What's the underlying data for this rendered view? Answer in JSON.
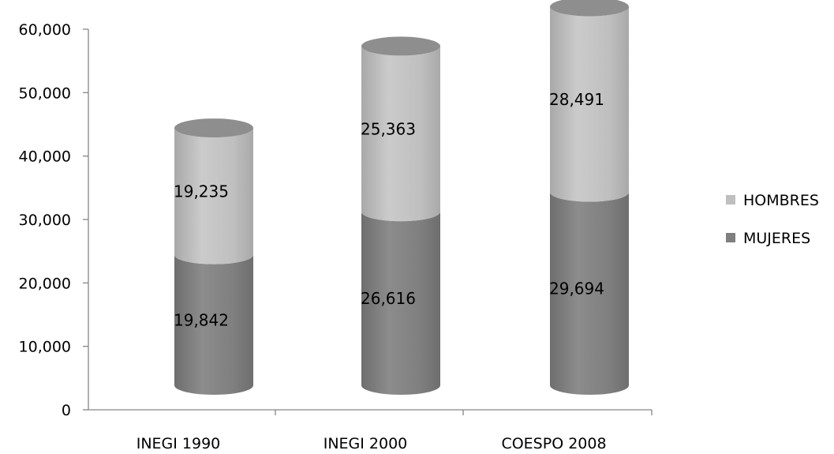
{
  "chart_data": {
    "type": "bar",
    "stacked": true,
    "style": "3d-cylinder",
    "categories": [
      "INEGI 1990",
      "INEGI 2000",
      "COESPO 2008"
    ],
    "series": [
      {
        "name": "MUJERES",
        "values": [
          19842,
          26616,
          29694
        ],
        "labels": [
          "19,842",
          "26,616",
          "29,694"
        ],
        "color": "#7f7f7f"
      },
      {
        "name": "HOMBRES",
        "values": [
          19235,
          25363,
          28491
        ],
        "labels": [
          "19,235",
          "25,363",
          "28,491"
        ],
        "color": "#bfbfbf"
      }
    ],
    "yticks": [
      {
        "value": 0,
        "label": "0"
      },
      {
        "value": 10000,
        "label": "10,000"
      },
      {
        "value": 20000,
        "label": "20,000"
      },
      {
        "value": 30000,
        "label": "30,000"
      },
      {
        "value": 40000,
        "label": "40,000"
      },
      {
        "value": 50000,
        "label": "50,000"
      },
      {
        "value": 60000,
        "label": "60,000"
      }
    ],
    "ylim": [
      0,
      60000
    ],
    "legend": {
      "position": "right",
      "order": [
        "HOMBRES",
        "MUJERES"
      ]
    },
    "grid": false
  }
}
